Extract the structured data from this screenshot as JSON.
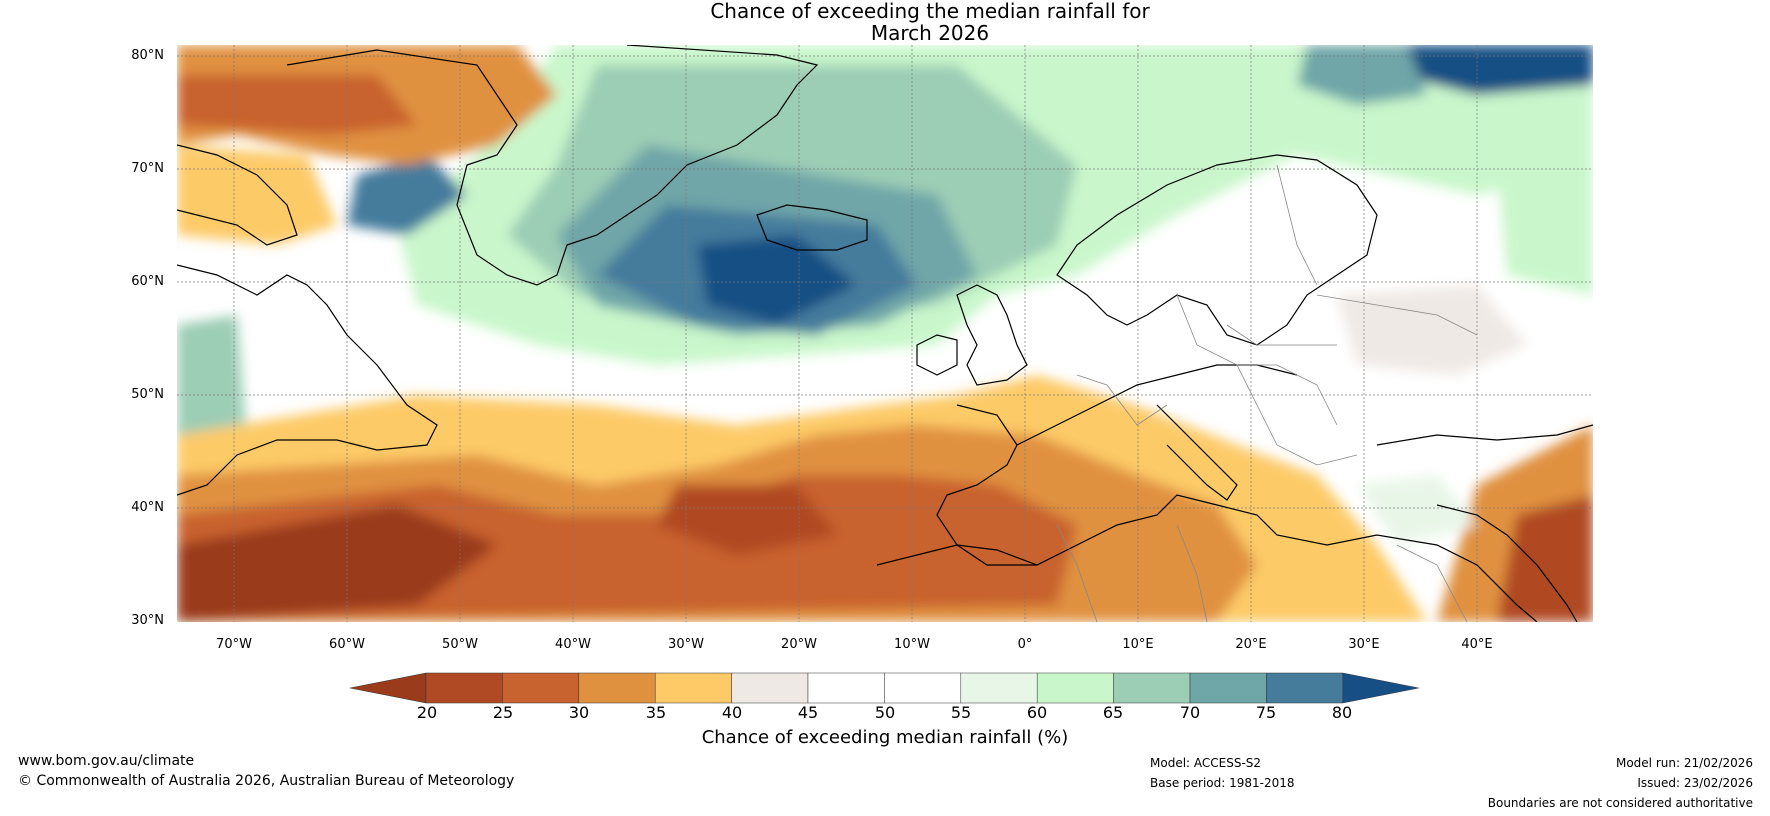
{
  "title": {
    "line1": "Chance of exceeding the median rainfall for",
    "line2": "March 2026"
  },
  "lat_labels": [
    "80°N",
    "70°N",
    "60°N",
    "50°N",
    "40°N",
    "30°N"
  ],
  "lon_labels": [
    "70°W",
    "60°W",
    "50°W",
    "40°W",
    "30°W",
    "20°W",
    "10°W",
    "0°",
    "10°E",
    "20°E",
    "30°E",
    "40°E"
  ],
  "colorbar": {
    "ticks": [
      "20",
      "25",
      "30",
      "35",
      "40",
      "45",
      "50",
      "55",
      "60",
      "65",
      "70",
      "75",
      "80"
    ],
    "colors": [
      "#9a3b1c",
      "#b04a24",
      "#c8622e",
      "#e0913f",
      "#fdca67",
      "#efe9e5",
      "#ffffff",
      "#ffffff",
      "#e8f6e8",
      "#c9f7cb",
      "#9ccdb5",
      "#6fa6a8",
      "#457c9c",
      "#154f84"
    ],
    "label": "Chance of exceeding median rainfall (%)"
  },
  "footer": {
    "website": "www.bom.gov.au/climate",
    "copyright": "© Commonwealth of Australia 2026, Australian Bureau of Meteorology",
    "model": "Model: ACCESS-S2",
    "base_period": "Base period: 1981-2018",
    "model_run": "Model run: 21/02/2026",
    "issued": "Issued: 23/02/2026",
    "disclaimer": "Boundaries are not considered authoritative"
  }
}
